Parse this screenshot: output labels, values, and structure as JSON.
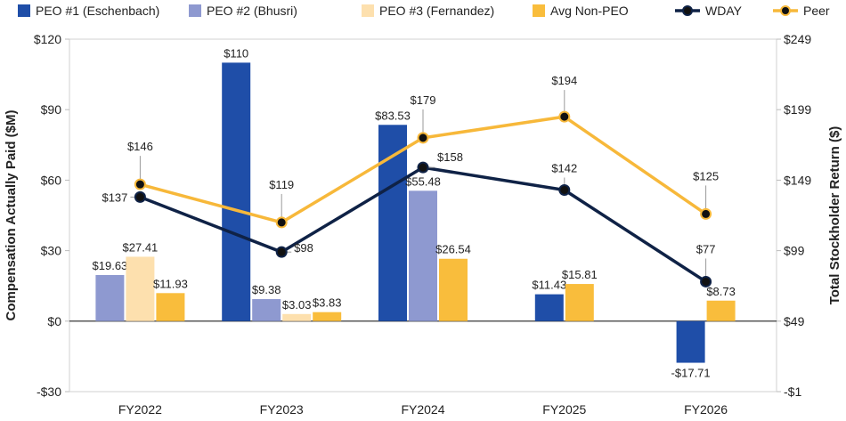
{
  "chart_data": {
    "type": "bar+line",
    "categories": [
      "FY2022",
      "FY2023",
      "FY2024",
      "FY2025",
      "FY2026"
    ],
    "ylabel_left": "Compensation Actually Paid ($M)",
    "ylabel_right": "Total Stockholder Return ($)",
    "yleft_range": [
      -30,
      120
    ],
    "yleft_ticks": [
      -30,
      0,
      30,
      60,
      90,
      120
    ],
    "yleft_tick_labels": [
      "-$30",
      "$0",
      "$30",
      "$60",
      "$90",
      "$120"
    ],
    "yright_range": [
      -1,
      249
    ],
    "yright_ticks": [
      -1,
      49,
      99,
      149,
      199,
      249
    ],
    "yright_tick_labels": [
      "-$1",
      "$49",
      "$99",
      "$149",
      "$199",
      "$249"
    ],
    "legend_position": "top",
    "bar_series": [
      {
        "name": "PEO #1 (Eschenbach)",
        "color": "#1f4ea8",
        "values": [
          null,
          110,
          83.53,
          11.43,
          -17.71
        ],
        "labels": [
          "",
          "$110",
          "$83.53",
          "$11.43",
          "-$17.71"
        ]
      },
      {
        "name": "PEO #2 (Bhusri)",
        "color": "#8e99d0",
        "values": [
          19.63,
          9.38,
          55.48,
          null,
          null
        ],
        "labels": [
          "$19.63",
          "$9.38",
          "$55.48",
          "",
          ""
        ]
      },
      {
        "name": "PEO #3 (Fernandez)",
        "color": "#fde0ae",
        "values": [
          27.41,
          3.03,
          null,
          null,
          null
        ],
        "labels": [
          "$27.41",
          "$3.03",
          "",
          "",
          ""
        ]
      },
      {
        "name": "Avg Non-PEO",
        "color": "#f9bd3c",
        "values": [
          11.93,
          3.83,
          26.54,
          15.81,
          8.73
        ],
        "labels": [
          "$11.93",
          "$3.83",
          "$26.54",
          "$15.81",
          "$8.73"
        ]
      }
    ],
    "line_series": [
      {
        "name": "WDAY",
        "color": "#0f2246",
        "values": [
          137,
          98,
          158,
          142,
          77
        ],
        "labels": [
          "$137",
          "$98",
          "$158",
          "$142",
          "$77"
        ]
      },
      {
        "name": "Peer",
        "color": "#f7b83a",
        "values": [
          146,
          119,
          179,
          194,
          125
        ],
        "labels": [
          "$146",
          "$119",
          "$179",
          "$194",
          "$125"
        ]
      }
    ]
  }
}
